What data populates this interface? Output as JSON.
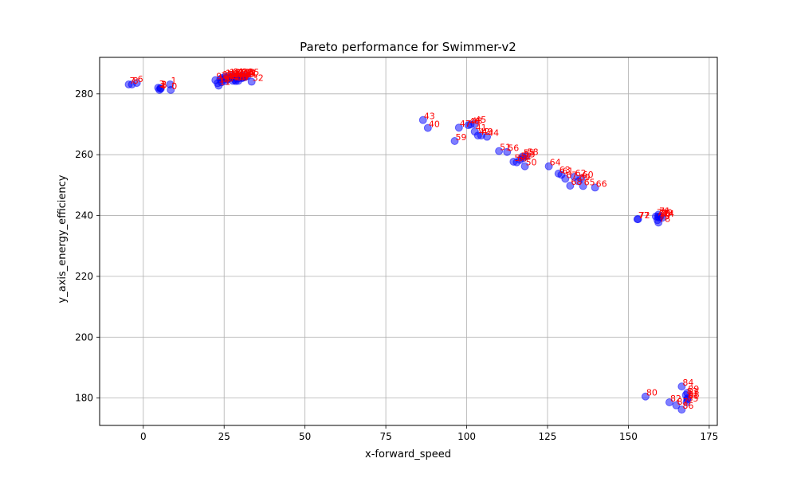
{
  "chart_data": {
    "type": "scatter",
    "title": "Pareto performance for Swimmer-v2",
    "xlabel": "x-forward_speed",
    "ylabel": "y_axis_energy_efficiency",
    "xlim": [
      -13.5,
      177.5
    ],
    "ylim": [
      171,
      292
    ],
    "xticks": [
      0,
      25,
      50,
      75,
      100,
      125,
      150,
      175
    ],
    "yticks": [
      180,
      200,
      220,
      240,
      260,
      280
    ],
    "grid": true,
    "marker_color": "#0000ff",
    "label_color": "#ff0000",
    "points": [
      {
        "label": "0",
        "x": 8.5,
        "y": 281.3
      },
      {
        "label": "1",
        "x": 8.3,
        "y": 283.1
      },
      {
        "label": "2",
        "x": 5.3,
        "y": 281.9
      },
      {
        "label": "3",
        "x": 4.6,
        "y": 282.0
      },
      {
        "label": "4",
        "x": 5.0,
        "y": 281.3
      },
      {
        "label": "5",
        "x": 5.4,
        "y": 281.7
      },
      {
        "label": "6",
        "x": -2.0,
        "y": 283.6
      },
      {
        "label": "7",
        "x": -4.5,
        "y": 283.1
      },
      {
        "label": "8",
        "x": -3.5,
        "y": 283.1
      },
      {
        "label": "9",
        "x": 22.3,
        "y": 284.5
      },
      {
        "label": "10",
        "x": 23.0,
        "y": 283.5
      },
      {
        "label": "11",
        "x": 23.3,
        "y": 282.7
      },
      {
        "label": "12",
        "x": 23.8,
        "y": 284.8
      },
      {
        "label": "13",
        "x": 24.3,
        "y": 285.2
      },
      {
        "label": "14",
        "x": 24.8,
        "y": 284.8
      },
      {
        "label": "15",
        "x": 25.2,
        "y": 285.6
      },
      {
        "label": "16",
        "x": 25.7,
        "y": 285.3
      },
      {
        "label": "17",
        "x": 26.0,
        "y": 284.8
      },
      {
        "label": "18",
        "x": 26.4,
        "y": 285.9
      },
      {
        "label": "19",
        "x": 26.8,
        "y": 285.2
      },
      {
        "label": "20",
        "x": 27.2,
        "y": 285.6
      },
      {
        "label": "21",
        "x": 27.6,
        "y": 286.0
      },
      {
        "label": "22",
        "x": 28.0,
        "y": 285.3
      },
      {
        "label": "23",
        "x": 28.4,
        "y": 284.6
      },
      {
        "label": "24",
        "x": 28.8,
        "y": 285.7
      },
      {
        "label": "25",
        "x": 29.2,
        "y": 285.9
      },
      {
        "label": "26",
        "x": 29.5,
        "y": 285.1
      },
      {
        "label": "27",
        "x": 29.9,
        "y": 285.7
      },
      {
        "label": "28",
        "x": 30.3,
        "y": 286.0
      },
      {
        "label": "29",
        "x": 30.7,
        "y": 285.3
      },
      {
        "label": "30",
        "x": 31.0,
        "y": 285.8
      },
      {
        "label": "31",
        "x": 31.5,
        "y": 285.5
      },
      {
        "label": "32",
        "x": 33.5,
        "y": 284.0
      },
      {
        "label": "33",
        "x": 24.2,
        "y": 283.8
      },
      {
        "label": "34",
        "x": 25.5,
        "y": 284.2
      },
      {
        "label": "35",
        "x": 32.2,
        "y": 285.9
      },
      {
        "label": "36",
        "x": 28.6,
        "y": 284.2
      },
      {
        "label": "37",
        "x": 29.4,
        "y": 284.3
      },
      {
        "label": "38",
        "x": 27.7,
        "y": 284.3
      },
      {
        "label": "39",
        "x": 30.6,
        "y": 285.2
      },
      {
        "label": "40",
        "x": 88.0,
        "y": 268.8
      },
      {
        "label": "41",
        "x": 102.5,
        "y": 267.6
      },
      {
        "label": "42",
        "x": 103.5,
        "y": 266.3
      },
      {
        "label": "43",
        "x": 86.5,
        "y": 271.4
      },
      {
        "label": "44",
        "x": 106.3,
        "y": 265.9
      },
      {
        "label": "45",
        "x": 102.4,
        "y": 270.2
      },
      {
        "label": "46",
        "x": 100.5,
        "y": 269.7
      },
      {
        "label": "47",
        "x": 97.6,
        "y": 268.9
      },
      {
        "label": "48",
        "x": 101.2,
        "y": 269.9
      },
      {
        "label": "49",
        "x": 104.5,
        "y": 266.3
      },
      {
        "label": "50",
        "x": 118.0,
        "y": 256.2
      },
      {
        "label": "51",
        "x": 110.0,
        "y": 261.2
      },
      {
        "label": "52",
        "x": 116.5,
        "y": 258.3
      },
      {
        "label": "53",
        "x": 117.5,
        "y": 258.9
      },
      {
        "label": "54",
        "x": 114.5,
        "y": 257.7
      },
      {
        "label": "55",
        "x": 117.3,
        "y": 259.4
      },
      {
        "label": "56",
        "x": 112.5,
        "y": 260.9
      },
      {
        "label": "57",
        "x": 115.5,
        "y": 257.5
      },
      {
        "label": "58",
        "x": 118.5,
        "y": 259.6
      },
      {
        "label": "59",
        "x": 96.3,
        "y": 264.5
      },
      {
        "label": "60",
        "x": 135.5,
        "y": 252.2
      },
      {
        "label": "61",
        "x": 129.3,
        "y": 253.4
      },
      {
        "label": "62",
        "x": 133.3,
        "y": 252.7
      },
      {
        "label": "63",
        "x": 128.4,
        "y": 253.8
      },
      {
        "label": "64",
        "x": 125.4,
        "y": 256.2
      },
      {
        "label": "65",
        "x": 136.0,
        "y": 249.7
      },
      {
        "label": "66",
        "x": 139.7,
        "y": 249.2
      },
      {
        "label": "67",
        "x": 130.5,
        "y": 252.1
      },
      {
        "label": "68",
        "x": 132.0,
        "y": 249.8
      },
      {
        "label": "69",
        "x": 134.5,
        "y": 251.3
      },
      {
        "label": "70",
        "x": 159.5,
        "y": 239.4
      },
      {
        "label": "71",
        "x": 159.3,
        "y": 240.3
      },
      {
        "label": "72",
        "x": 153.0,
        "y": 238.8
      },
      {
        "label": "73",
        "x": 158.5,
        "y": 239.7
      },
      {
        "label": "74",
        "x": 160.5,
        "y": 239.3
      },
      {
        "label": "75",
        "x": 159.0,
        "y": 238.5
      },
      {
        "label": "76",
        "x": 159.2,
        "y": 239.6
      },
      {
        "label": "77",
        "x": 152.8,
        "y": 238.8
      },
      {
        "label": "78",
        "x": 159.3,
        "y": 237.7
      },
      {
        "label": "79",
        "x": 160.0,
        "y": 239.8
      },
      {
        "label": "80",
        "x": 155.3,
        "y": 180.5
      },
      {
        "label": "81",
        "x": 168.2,
        "y": 179.5
      },
      {
        "label": "82",
        "x": 162.7,
        "y": 178.6
      },
      {
        "label": "83",
        "x": 167.8,
        "y": 181.0
      },
      {
        "label": "84",
        "x": 166.5,
        "y": 183.8
      },
      {
        "label": "85",
        "x": 168.0,
        "y": 178.6
      },
      {
        "label": "86",
        "x": 166.5,
        "y": 176.2
      },
      {
        "label": "87",
        "x": 164.8,
        "y": 177.6
      },
      {
        "label": "88",
        "x": 168.3,
        "y": 179.9
      },
      {
        "label": "89",
        "x": 168.2,
        "y": 181.7
      }
    ]
  }
}
